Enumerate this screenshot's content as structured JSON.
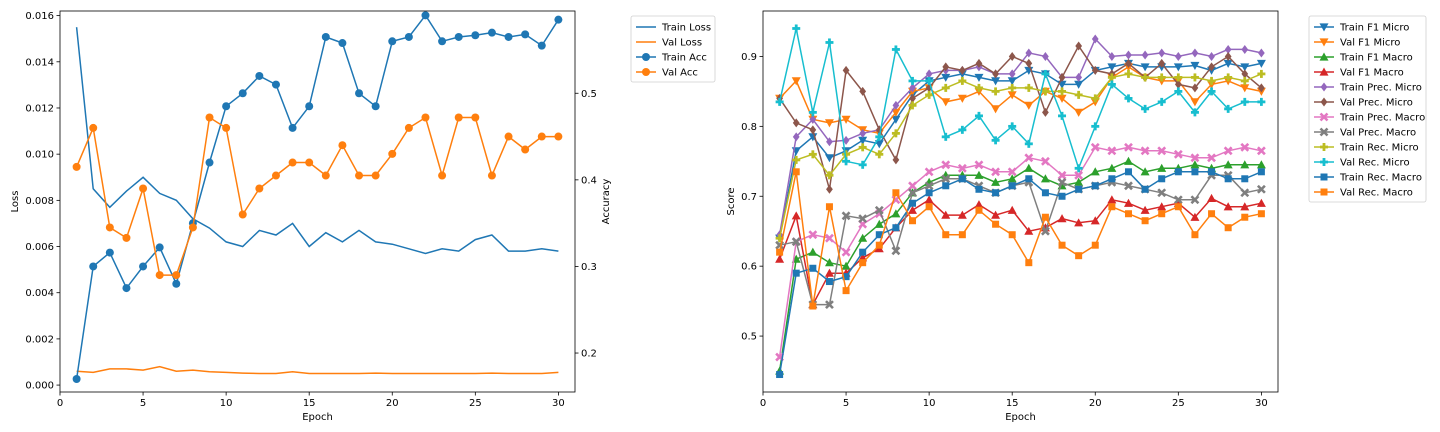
{
  "chart_data": [
    {
      "type": "line",
      "xlabel": "Epoch",
      "ylabel": "Loss",
      "y2label": "Accuracy",
      "xlim": [
        0,
        31
      ],
      "ylim": [
        -0.0003,
        0.0162
      ],
      "y2lim": [
        0.155,
        0.595
      ],
      "xticks": [
        0,
        5,
        10,
        15,
        20,
        25,
        30
      ],
      "yticks": [
        0.0,
        0.002,
        0.004,
        0.006,
        0.008,
        0.01,
        0.012,
        0.014,
        0.016
      ],
      "ytick_labels": [
        "0.000",
        "0.002",
        "0.004",
        "0.006",
        "0.008",
        "0.010",
        "0.012",
        "0.014",
        "0.016"
      ],
      "y2ticks": [
        0.2,
        0.3,
        0.4,
        0.5
      ],
      "y2tick_labels": [
        "0.2",
        "0.3",
        "0.4",
        "0.5"
      ],
      "legend_position": "outside-right",
      "x": [
        1,
        2,
        3,
        4,
        5,
        6,
        7,
        8,
        9,
        10,
        11,
        12,
        13,
        14,
        15,
        16,
        17,
        18,
        19,
        20,
        21,
        22,
        23,
        24,
        25,
        26,
        27,
        28,
        29,
        30
      ],
      "series": [
        {
          "name": "Train Loss",
          "axis": "left",
          "color": "#1f77b4",
          "marker": "none",
          "values": [
            0.0155,
            0.0085,
            0.0077,
            0.0084,
            0.009,
            0.0083,
            0.008,
            0.0072,
            0.0068,
            0.0062,
            0.006,
            0.0067,
            0.0065,
            0.007,
            0.006,
            0.0066,
            0.0062,
            0.0067,
            0.0062,
            0.0061,
            0.0059,
            0.0057,
            0.0059,
            0.0058,
            0.0063,
            0.0065,
            0.0058,
            0.0058,
            0.0059,
            0.0058
          ]
        },
        {
          "name": "Val Loss",
          "axis": "left",
          "color": "#ff7f0e",
          "marker": "none",
          "values": [
            0.0006,
            0.00055,
            0.0007,
            0.0007,
            0.00065,
            0.0008,
            0.0006,
            0.00065,
            0.00058,
            0.00055,
            0.00052,
            0.0005,
            0.0005,
            0.00058,
            0.0005,
            0.0005,
            0.0005,
            0.0005,
            0.00052,
            0.0005,
            0.0005,
            0.0005,
            0.0005,
            0.0005,
            0.0005,
            0.00052,
            0.0005,
            0.0005,
            0.0005,
            0.00055
          ]
        },
        {
          "name": "Train Acc",
          "axis": "right",
          "color": "#1f77b4",
          "marker": "circle",
          "values": [
            0.17,
            0.3,
            0.316,
            0.275,
            0.3,
            0.322,
            0.28,
            0.35,
            0.42,
            0.485,
            0.5,
            0.52,
            0.51,
            0.46,
            0.485,
            0.565,
            0.558,
            0.5,
            0.485,
            0.56,
            0.565,
            0.59,
            0.56,
            0.565,
            0.567,
            0.57,
            0.565,
            0.568,
            0.555,
            0.585
          ]
        },
        {
          "name": "Val Acc",
          "axis": "right",
          "color": "#ff7f0e",
          "marker": "circle",
          "values": [
            0.415,
            0.46,
            0.345,
            0.333,
            0.39,
            0.29,
            0.29,
            0.345,
            0.472,
            0.46,
            0.36,
            0.39,
            0.405,
            0.42,
            0.42,
            0.405,
            0.44,
            0.405,
            0.405,
            0.43,
            0.46,
            0.472,
            0.405,
            0.472,
            0.472,
            0.405,
            0.45,
            0.435,
            0.45,
            0.45
          ]
        }
      ]
    },
    {
      "type": "line",
      "xlabel": "Epoch",
      "ylabel": "Score",
      "xlim": [
        0,
        31
      ],
      "ylim": [
        0.42,
        0.965
      ],
      "xticks": [
        0,
        5,
        10,
        15,
        20,
        25,
        30
      ],
      "yticks": [
        0.5,
        0.6,
        0.7,
        0.8,
        0.9
      ],
      "ytick_labels": [
        "0.5",
        "0.6",
        "0.7",
        "0.8",
        "0.9"
      ],
      "legend_position": "outside-right",
      "x": [
        1,
        2,
        3,
        4,
        5,
        6,
        7,
        8,
        9,
        10,
        11,
        12,
        13,
        14,
        15,
        16,
        17,
        18,
        19,
        20,
        21,
        22,
        23,
        24,
        25,
        26,
        27,
        28,
        29,
        30
      ],
      "series": [
        {
          "name": "Train F1 Micro",
          "color": "#1f77b4",
          "marker": "tri_down",
          "values": [
            0.64,
            0.765,
            0.785,
            0.755,
            0.765,
            0.78,
            0.775,
            0.81,
            0.845,
            0.865,
            0.87,
            0.875,
            0.87,
            0.865,
            0.865,
            0.88,
            0.875,
            0.86,
            0.86,
            0.88,
            0.885,
            0.89,
            0.885,
            0.885,
            0.885,
            0.887,
            0.88,
            0.89,
            0.885,
            0.89
          ]
        },
        {
          "name": "Val F1 Micro",
          "color": "#ff7f0e",
          "marker": "tri_down",
          "values": [
            0.84,
            0.865,
            0.81,
            0.805,
            0.81,
            0.795,
            0.79,
            0.82,
            0.85,
            0.855,
            0.835,
            0.84,
            0.85,
            0.825,
            0.845,
            0.83,
            0.85,
            0.84,
            0.82,
            0.835,
            0.87,
            0.885,
            0.87,
            0.865,
            0.865,
            0.835,
            0.86,
            0.865,
            0.855,
            0.85
          ]
        },
        {
          "name": "Train F1 Macro",
          "color": "#2ca02c",
          "marker": "tri_up",
          "values": [
            0.45,
            0.61,
            0.62,
            0.605,
            0.6,
            0.64,
            0.66,
            0.675,
            0.705,
            0.72,
            0.73,
            0.73,
            0.73,
            0.72,
            0.725,
            0.74,
            0.725,
            0.715,
            0.72,
            0.735,
            0.74,
            0.75,
            0.735,
            0.74,
            0.74,
            0.745,
            0.74,
            0.745,
            0.745,
            0.745
          ]
        },
        {
          "name": "Val F1 Macro",
          "color": "#d62728",
          "marker": "tri_up",
          "values": [
            0.61,
            0.672,
            0.545,
            0.59,
            0.59,
            0.612,
            0.625,
            0.655,
            0.68,
            0.695,
            0.673,
            0.673,
            0.688,
            0.673,
            0.68,
            0.65,
            0.655,
            0.668,
            0.662,
            0.665,
            0.695,
            0.69,
            0.68,
            0.685,
            0.69,
            0.67,
            0.697,
            0.685,
            0.685,
            0.69
          ]
        },
        {
          "name": "Train Prec. Micro",
          "color": "#9467bd",
          "marker": "diamond",
          "values": [
            0.645,
            0.785,
            0.81,
            0.778,
            0.78,
            0.79,
            0.795,
            0.83,
            0.855,
            0.875,
            0.88,
            0.88,
            0.885,
            0.875,
            0.875,
            0.905,
            0.9,
            0.87,
            0.87,
            0.925,
            0.9,
            0.902,
            0.902,
            0.905,
            0.9,
            0.905,
            0.9,
            0.91,
            0.91,
            0.905
          ]
        },
        {
          "name": "Val Prec. Micro",
          "color": "#8c564b",
          "marker": "diamond",
          "values": [
            0.84,
            0.805,
            0.795,
            0.71,
            0.88,
            0.85,
            0.795,
            0.752,
            0.84,
            0.855,
            0.885,
            0.88,
            0.89,
            0.875,
            0.9,
            0.89,
            0.82,
            0.87,
            0.915,
            0.88,
            0.875,
            0.89,
            0.87,
            0.89,
            0.86,
            0.855,
            0.885,
            0.9,
            0.875,
            0.855
          ]
        },
        {
          "name": "Train Prec. Macro",
          "color": "#e377c2",
          "marker": "x",
          "values": [
            0.47,
            0.635,
            0.645,
            0.64,
            0.62,
            0.66,
            0.675,
            0.695,
            0.715,
            0.735,
            0.745,
            0.74,
            0.745,
            0.735,
            0.735,
            0.755,
            0.75,
            0.73,
            0.73,
            0.77,
            0.765,
            0.77,
            0.765,
            0.765,
            0.76,
            0.755,
            0.755,
            0.765,
            0.77,
            0.765
          ]
        },
        {
          "name": "Val Prec. Macro",
          "color": "#7f7f7f",
          "marker": "x",
          "values": [
            0.63,
            0.635,
            0.545,
            0.545,
            0.672,
            0.668,
            0.68,
            0.622,
            0.705,
            0.715,
            0.725,
            0.725,
            0.715,
            0.705,
            0.715,
            0.72,
            0.65,
            0.72,
            0.71,
            0.715,
            0.72,
            0.715,
            0.71,
            0.705,
            0.695,
            0.695,
            0.73,
            0.73,
            0.705,
            0.71
          ]
        },
        {
          "name": "Train Rec. Micro",
          "color": "#bcbd22",
          "marker": "plus",
          "values": [
            0.64,
            0.752,
            0.76,
            0.73,
            0.76,
            0.77,
            0.76,
            0.79,
            0.83,
            0.845,
            0.855,
            0.865,
            0.855,
            0.85,
            0.855,
            0.855,
            0.85,
            0.85,
            0.845,
            0.84,
            0.87,
            0.875,
            0.87,
            0.87,
            0.87,
            0.87,
            0.865,
            0.87,
            0.865,
            0.875
          ]
        },
        {
          "name": "Val Rec. Micro",
          "color": "#17becf",
          "marker": "plus",
          "values": [
            0.835,
            0.94,
            0.82,
            0.92,
            0.75,
            0.745,
            0.785,
            0.91,
            0.865,
            0.865,
            0.785,
            0.795,
            0.815,
            0.78,
            0.8,
            0.775,
            0.875,
            0.815,
            0.74,
            0.8,
            0.86,
            0.84,
            0.825,
            0.835,
            0.85,
            0.82,
            0.85,
            0.825,
            0.835,
            0.835
          ]
        },
        {
          "name": "Train Rec. Macro",
          "color": "#1f77b4",
          "marker": "square",
          "values": [
            0.445,
            0.59,
            0.597,
            0.578,
            0.585,
            0.62,
            0.645,
            0.655,
            0.69,
            0.705,
            0.715,
            0.725,
            0.71,
            0.705,
            0.715,
            0.725,
            0.705,
            0.7,
            0.71,
            0.715,
            0.725,
            0.735,
            0.71,
            0.725,
            0.735,
            0.735,
            0.735,
            0.725,
            0.725,
            0.735
          ]
        },
        {
          "name": "Val Rec. Macro",
          "color": "#ff7f0e",
          "marker": "square",
          "values": [
            0.62,
            0.735,
            0.543,
            0.685,
            0.565,
            0.605,
            0.63,
            0.705,
            0.665,
            0.685,
            0.645,
            0.645,
            0.68,
            0.66,
            0.645,
            0.605,
            0.67,
            0.63,
            0.615,
            0.63,
            0.685,
            0.675,
            0.665,
            0.675,
            0.685,
            0.645,
            0.675,
            0.655,
            0.67,
            0.675
          ]
        }
      ]
    }
  ]
}
